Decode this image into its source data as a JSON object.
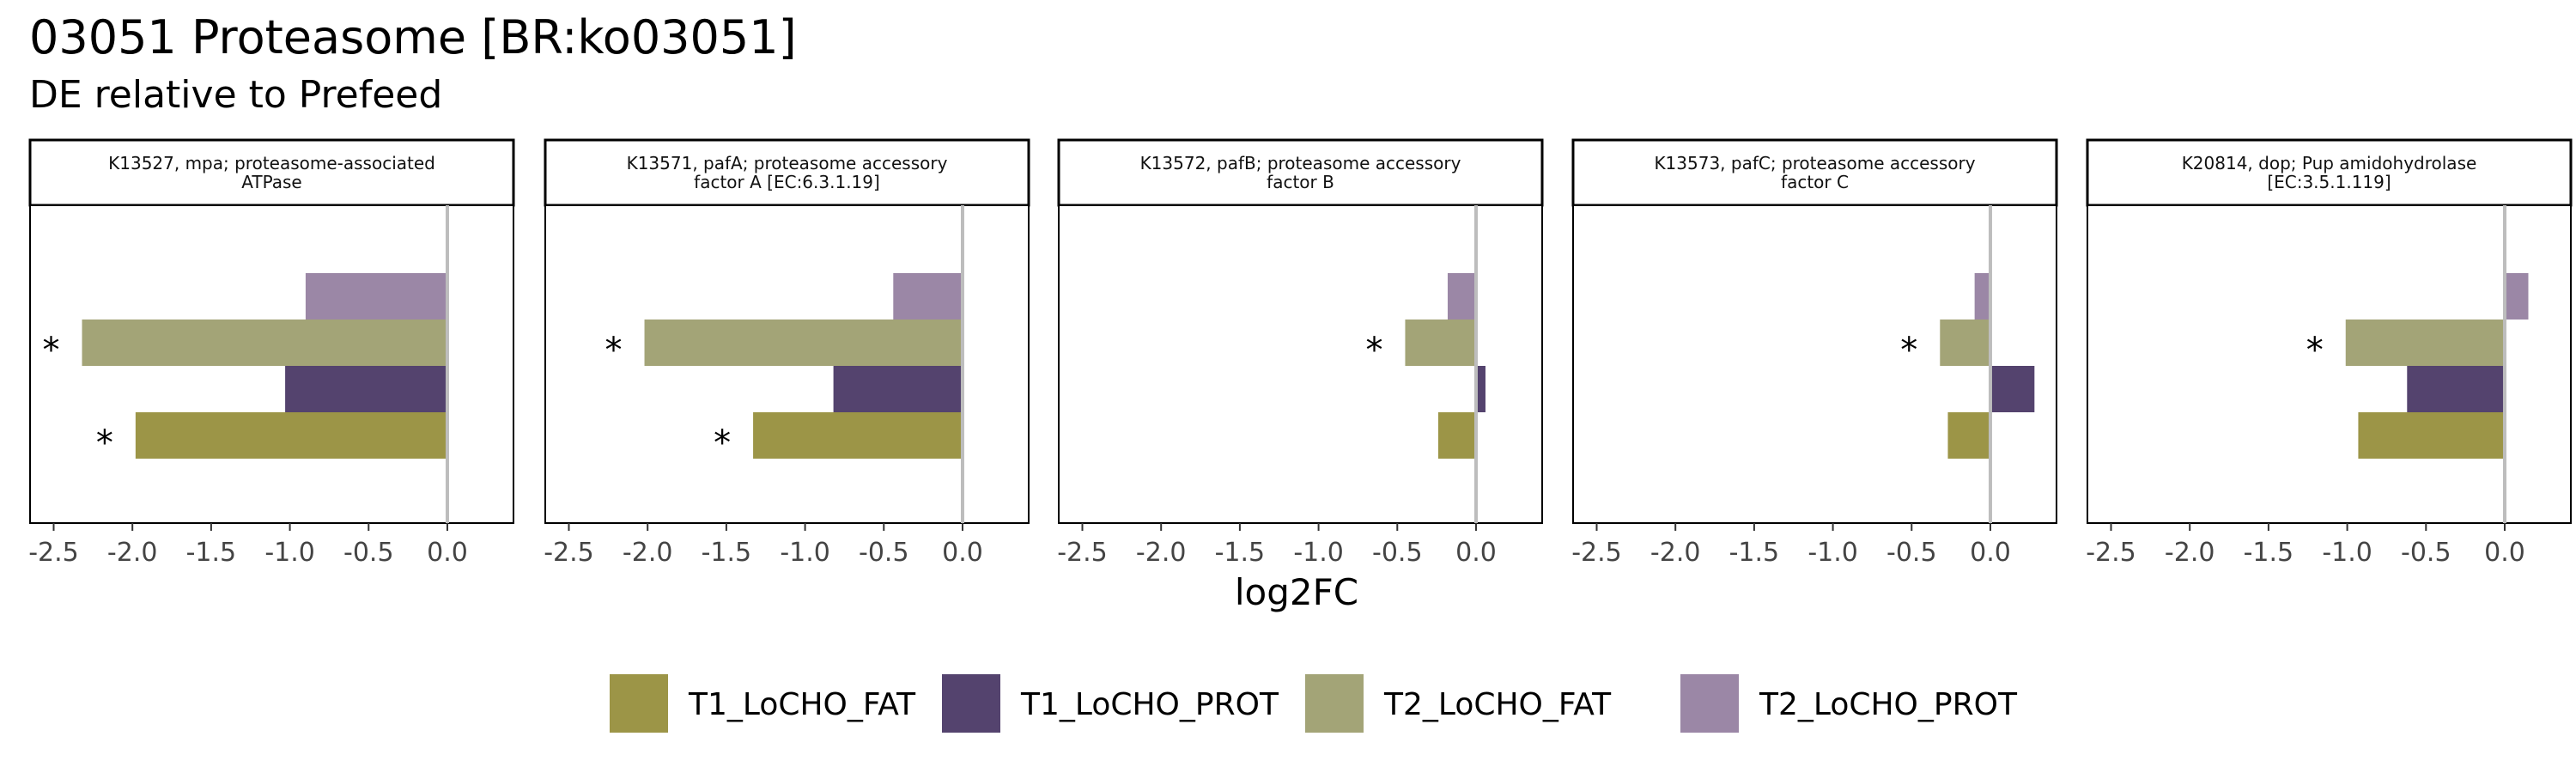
{
  "chart_data": {
    "type": "bar",
    "orientation": "horizontal",
    "title": "03051 Proteasome [BR:ko03051]",
    "subtitle": "DE relative to Prefeed",
    "xlabel": "log2FC",
    "xlim": [
      -2.65,
      0.42
    ],
    "xticks": [
      -2.5,
      -2.0,
      -1.5,
      -1.0,
      -0.5,
      0.0
    ],
    "xtick_labels": [
      "-2.5",
      "-2.0",
      "-1.5",
      "-1.0",
      "-0.5",
      "0.0"
    ],
    "legend_position": "bottom",
    "series": [
      {
        "name": "T1_LoCHO_FAT",
        "color": "#9c9547"
      },
      {
        "name": "T1_LoCHO_PROT",
        "color": "#54436e"
      },
      {
        "name": "T2_LoCHO_FAT",
        "color": "#a3a477"
      },
      {
        "name": "T2_LoCHO_PROT",
        "color": "#9b87a6"
      }
    ],
    "panels": [
      {
        "strip": [
          "K13527, mpa; proteasome-associated",
          "ATPase"
        ],
        "values": [
          -1.98,
          -1.03,
          -2.32,
          -0.9
        ],
        "significant": [
          true,
          false,
          true,
          false
        ]
      },
      {
        "strip": [
          "K13571, pafA; proteasome accessory",
          "factor A [EC:6.3.1.19]"
        ],
        "values": [
          -1.33,
          -0.82,
          -2.02,
          -0.44
        ],
        "significant": [
          true,
          false,
          true,
          false
        ]
      },
      {
        "strip": [
          "K13572, pafB; proteasome accessory",
          "factor B"
        ],
        "values": [
          -0.24,
          0.06,
          -0.45,
          -0.18
        ],
        "significant": [
          false,
          false,
          true,
          false
        ]
      },
      {
        "strip": [
          "K13573, pafC; proteasome accessory",
          "factor C"
        ],
        "values": [
          -0.27,
          0.28,
          -0.32,
          -0.1
        ],
        "significant": [
          false,
          false,
          true,
          false
        ]
      },
      {
        "strip": [
          "K20814, dop; Pup amidohydrolase",
          "[EC:3.5.1.119]"
        ],
        "values": [
          -0.93,
          -0.62,
          -1.01,
          0.15
        ],
        "significant": [
          false,
          false,
          true,
          false
        ]
      }
    ],
    "significance_marker": "*"
  }
}
